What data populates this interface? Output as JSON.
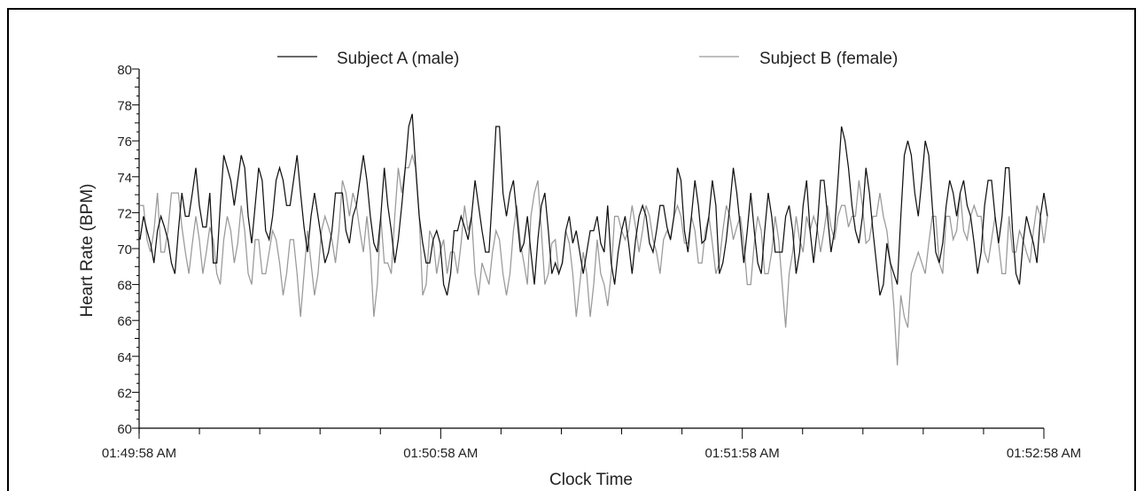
{
  "chart_data": {
    "type": "line",
    "title": "",
    "xlabel": "Clock Time",
    "ylabel": "Heart Rate (BPM)",
    "ylim": [
      60,
      80
    ],
    "yticks": [
      "60",
      "62",
      "64",
      "66",
      "68",
      "70",
      "72",
      "74",
      "76",
      "78",
      "80"
    ],
    "xticks": [
      "01:49:58 AM",
      "01:50:58 AM",
      "01:51:58 AM",
      "01:52:58 AM"
    ],
    "x_start": "01:49:58 AM",
    "x_end": "01:52:58 AM",
    "grid": false,
    "legend_position": "top",
    "series": [
      {
        "name": "Subject A (male)",
        "color": "#111111",
        "values": [
          70.5,
          71.8,
          71.0,
          70.3,
          69.2,
          71.0,
          71.8,
          71.2,
          70.5,
          69.2,
          68.6,
          71.0,
          73.1,
          71.8,
          71.8,
          73.1,
          74.5,
          72.4,
          71.2,
          71.2,
          73.1,
          69.2,
          69.2,
          72.4,
          75.2,
          74.5,
          73.8,
          72.4,
          73.8,
          75.2,
          74.5,
          71.8,
          70.3,
          72.4,
          74.5,
          73.8,
          71.0,
          70.5,
          71.8,
          73.8,
          74.5,
          73.8,
          72.4,
          72.4,
          73.8,
          75.2,
          73.1,
          71.2,
          69.8,
          71.8,
          73.1,
          71.8,
          70.5,
          69.2,
          69.8,
          71.0,
          73.1,
          73.1,
          73.1,
          71.0,
          70.3,
          71.8,
          72.4,
          73.8,
          75.2,
          73.8,
          71.8,
          70.3,
          69.8,
          71.8,
          74.5,
          72.4,
          71.0,
          69.2,
          70.5,
          72.4,
          74.5,
          76.8,
          77.5,
          74.5,
          71.8,
          70.3,
          69.2,
          69.2,
          70.5,
          71.0,
          70.3,
          68.0,
          67.4,
          68.6,
          71.0,
          71.0,
          71.8,
          71.2,
          70.5,
          71.8,
          73.8,
          72.4,
          71.0,
          69.8,
          69.8,
          73.1,
          76.8,
          76.8,
          73.1,
          71.8,
          73.1,
          73.8,
          71.8,
          69.8,
          70.3,
          71.8,
          69.8,
          68.0,
          70.5,
          72.4,
          73.1,
          71.0,
          68.6,
          69.2,
          68.6,
          69.2,
          71.0,
          71.8,
          70.3,
          71.0,
          69.8,
          68.6,
          69.8,
          71.0,
          71.0,
          71.8,
          70.3,
          69.8,
          72.4,
          69.2,
          68.0,
          69.8,
          71.0,
          71.8,
          70.3,
          68.6,
          70.5,
          71.8,
          72.4,
          71.8,
          70.3,
          69.8,
          71.0,
          72.4,
          72.4,
          71.2,
          70.5,
          71.8,
          74.5,
          73.8,
          71.0,
          69.8,
          71.8,
          73.8,
          72.4,
          70.3,
          70.5,
          71.8,
          73.8,
          72.4,
          68.6,
          69.2,
          70.5,
          72.4,
          74.5,
          73.1,
          71.2,
          69.2,
          71.0,
          73.1,
          71.0,
          69.2,
          68.6,
          71.0,
          73.1,
          71.8,
          69.8,
          69.8,
          69.8,
          71.8,
          72.4,
          71.0,
          68.6,
          69.8,
          72.4,
          73.8,
          71.0,
          69.2,
          71.0,
          73.8,
          73.8,
          71.8,
          69.8,
          71.0,
          73.8,
          76.8,
          76.0,
          74.5,
          72.4,
          71.0,
          70.3,
          71.8,
          74.5,
          73.1,
          71.0,
          69.2,
          67.4,
          68.0,
          70.3,
          69.2,
          68.6,
          68.0,
          71.8,
          75.2,
          76.0,
          75.2,
          73.1,
          71.8,
          73.8,
          76.0,
          75.2,
          72.4,
          69.8,
          69.2,
          70.3,
          72.4,
          73.8,
          73.1,
          71.8,
          73.1,
          73.8,
          72.4,
          71.8,
          70.3,
          68.6,
          69.8,
          72.4,
          73.8,
          73.8,
          71.8,
          70.3,
          71.8,
          74.5,
          74.5,
          71.0,
          68.6,
          68.0,
          70.3,
          71.8,
          71.0,
          70.3,
          69.2,
          71.8,
          73.1,
          71.8
        ]
      },
      {
        "name": "Subject B (female)",
        "color": "#999999",
        "values": [
          72.4,
          72.4,
          70.5,
          69.8,
          71.0,
          73.1,
          69.8,
          69.8,
          71.0,
          73.1,
          73.1,
          73.1,
          71.2,
          69.8,
          68.6,
          70.3,
          71.8,
          70.5,
          68.6,
          69.8,
          71.2,
          70.5,
          68.6,
          68.0,
          70.5,
          71.8,
          71.0,
          69.2,
          70.3,
          72.4,
          71.0,
          68.6,
          68.0,
          70.5,
          70.5,
          68.6,
          68.6,
          69.8,
          71.0,
          70.5,
          69.2,
          67.4,
          68.6,
          70.5,
          70.5,
          68.6,
          66.2,
          68.6,
          71.0,
          69.2,
          67.4,
          68.6,
          71.0,
          71.8,
          71.2,
          70.5,
          69.2,
          71.0,
          73.8,
          73.1,
          71.8,
          73.1,
          72.4,
          71.0,
          69.8,
          71.8,
          69.8,
          66.2,
          68.0,
          71.8,
          69.2,
          69.2,
          68.6,
          71.8,
          74.5,
          73.1,
          74.5,
          74.5,
          75.2,
          74.5,
          71.8,
          67.4,
          68.0,
          71.0,
          70.5,
          68.6,
          69.8,
          70.5,
          68.6,
          69.8,
          69.8,
          68.6,
          70.3,
          72.4,
          71.0,
          71.8,
          68.6,
          67.4,
          69.2,
          68.6,
          68.0,
          69.8,
          71.0,
          70.5,
          68.6,
          67.4,
          68.6,
          71.0,
          72.4,
          70.3,
          69.2,
          68.0,
          71.8,
          73.1,
          73.8,
          71.0,
          68.0,
          68.6,
          70.3,
          70.5,
          68.6,
          69.2,
          71.0,
          70.3,
          68.6,
          66.2,
          68.0,
          69.8,
          68.6,
          66.2,
          68.0,
          70.5,
          68.6,
          68.0,
          66.8,
          68.6,
          71.8,
          71.8,
          71.0,
          70.5,
          71.0,
          72.4,
          71.2,
          69.8,
          71.0,
          72.4,
          71.8,
          70.5,
          69.8,
          68.6,
          70.5,
          71.0,
          70.5,
          71.8,
          72.4,
          71.8,
          70.3,
          70.3,
          71.8,
          71.0,
          69.2,
          69.2,
          71.0,
          71.8,
          70.3,
          68.6,
          69.2,
          71.0,
          72.4,
          71.8,
          70.5,
          71.2,
          71.8,
          70.3,
          68.0,
          68.0,
          70.3,
          71.8,
          71.0,
          68.6,
          68.6,
          69.8,
          71.8,
          70.5,
          68.0,
          65.6,
          68.6,
          69.8,
          71.8,
          70.5,
          69.8,
          71.8,
          71.0,
          71.8,
          71.2,
          69.8,
          71.0,
          72.4,
          71.2,
          70.5,
          71.8,
          72.4,
          72.4,
          71.2,
          71.8,
          71.8,
          73.8,
          72.4,
          70.3,
          70.5,
          71.8,
          71.8,
          73.1,
          71.8,
          71.0,
          69.2,
          66.8,
          63.5,
          67.4,
          66.2,
          65.6,
          68.6,
          69.2,
          69.8,
          69.2,
          68.6,
          70.3,
          71.8,
          71.8,
          69.2,
          68.6,
          71.8,
          71.8,
          70.5,
          71.0,
          73.1,
          71.0,
          70.5,
          71.8,
          72.4,
          71.8,
          71.8,
          69.8,
          69.2,
          70.5,
          71.8,
          70.3,
          68.6,
          68.6,
          71.8,
          69.8,
          69.8,
          71.0,
          70.5,
          69.8,
          69.2,
          71.0,
          72.4,
          71.8,
          70.3,
          71.8
        ]
      }
    ]
  }
}
